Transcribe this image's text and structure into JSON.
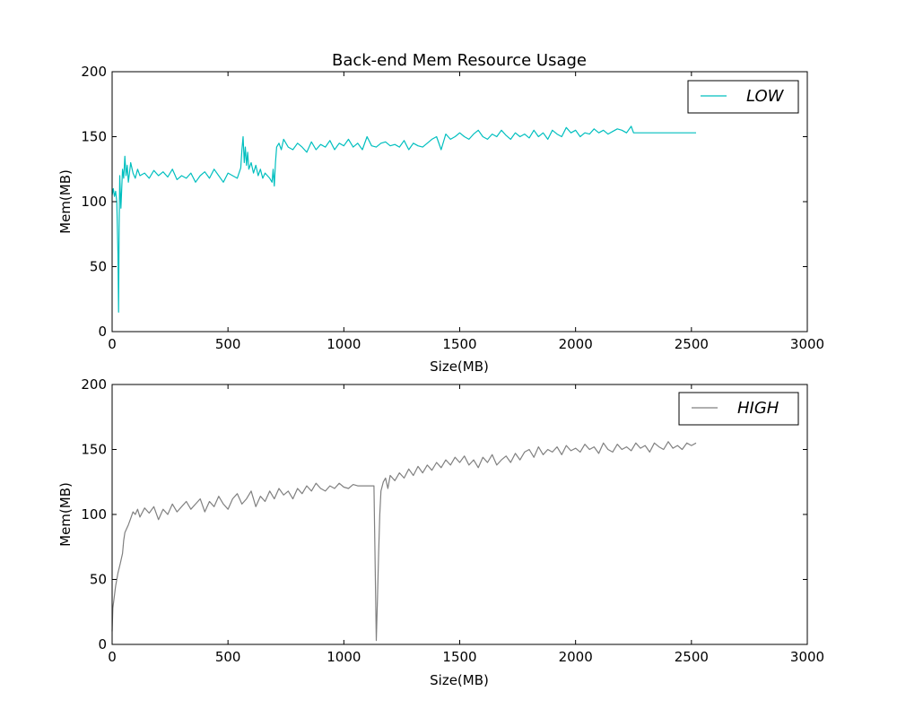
{
  "figure_title": "Back-end Mem Resource Usage",
  "chart_data": [
    {
      "type": "line",
      "title": "Back-end Mem Resource Usage",
      "xlabel": "Size(MB)",
      "ylabel": "Mem(MB)",
      "xlim": [
        0,
        3000
      ],
      "ylim": [
        0,
        200
      ],
      "xticks": [
        0,
        500,
        1000,
        1500,
        2000,
        2500,
        3000
      ],
      "yticks": [
        0,
        50,
        100,
        150,
        200
      ],
      "grid": false,
      "legend": {
        "placement": "top-right"
      },
      "series": [
        {
          "name": "LOW",
          "color": "#00bfbf",
          "x": [
            0,
            5,
            10,
            15,
            20,
            25,
            28,
            30,
            33,
            38,
            45,
            50,
            55,
            60,
            65,
            70,
            80,
            90,
            100,
            110,
            120,
            140,
            160,
            180,
            200,
            220,
            240,
            260,
            280,
            300,
            320,
            340,
            360,
            380,
            400,
            420,
            440,
            460,
            480,
            500,
            520,
            540,
            555,
            560,
            565,
            570,
            575,
            580,
            585,
            590,
            600,
            610,
            620,
            630,
            640,
            650,
            660,
            670,
            680,
            690,
            695,
            700,
            705,
            710,
            720,
            730,
            740,
            760,
            780,
            800,
            820,
            840,
            860,
            880,
            900,
            920,
            940,
            960,
            980,
            1000,
            1020,
            1040,
            1060,
            1080,
            1100,
            1120,
            1140,
            1160,
            1180,
            1200,
            1220,
            1240,
            1260,
            1280,
            1300,
            1320,
            1340,
            1360,
            1380,
            1400,
            1420,
            1440,
            1460,
            1480,
            1500,
            1520,
            1540,
            1560,
            1580,
            1600,
            1620,
            1640,
            1660,
            1680,
            1700,
            1720,
            1740,
            1760,
            1780,
            1800,
            1820,
            1840,
            1860,
            1880,
            1900,
            1920,
            1940,
            1960,
            1980,
            2000,
            2020,
            2040,
            2060,
            2080,
            2100,
            2120,
            2140,
            2160,
            2180,
            2200,
            2220,
            2240,
            2250,
            2300,
            2400,
            2520
          ],
          "values": [
            105,
            110,
            104,
            108,
            100,
            60,
            15,
            80,
            120,
            95,
            125,
            118,
            135,
            120,
            128,
            115,
            130,
            122,
            118,
            125,
            120,
            122,
            118,
            124,
            120,
            123,
            119,
            125,
            117,
            120,
            118,
            122,
            115,
            120,
            123,
            118,
            125,
            120,
            115,
            122,
            120,
            118,
            126,
            140,
            150,
            130,
            142,
            128,
            138,
            125,
            130,
            122,
            128,
            120,
            125,
            118,
            122,
            120,
            118,
            115,
            125,
            112,
            130,
            142,
            145,
            140,
            148,
            142,
            140,
            145,
            142,
            138,
            146,
            140,
            144,
            142,
            147,
            140,
            145,
            143,
            148,
            142,
            145,
            140,
            150,
            143,
            142,
            145,
            146,
            143,
            144,
            142,
            147,
            140,
            145,
            143,
            142,
            145,
            148,
            150,
            140,
            152,
            148,
            150,
            153,
            150,
            148,
            152,
            155,
            150,
            148,
            152,
            150,
            155,
            151,
            148,
            153,
            150,
            152,
            149,
            155,
            150,
            153,
            148,
            155,
            152,
            150,
            157,
            153,
            155,
            150,
            153,
            152,
            156,
            153,
            155,
            152,
            154,
            156,
            155,
            153,
            158,
            153,
            153,
            153,
            153
          ]
        }
      ]
    },
    {
      "type": "line",
      "title": "",
      "xlabel": "Size(MB)",
      "ylabel": "Mem(MB)",
      "xlim": [
        0,
        3000
      ],
      "ylim": [
        0,
        200
      ],
      "xticks": [
        0,
        500,
        1000,
        1500,
        2000,
        2500,
        3000
      ],
      "yticks": [
        0,
        50,
        100,
        150,
        200
      ],
      "grid": false,
      "legend": {
        "placement": "top-right"
      },
      "series": [
        {
          "name": "HIGH",
          "color": "#808080",
          "x": [
            0,
            3,
            8,
            15,
            25,
            35,
            45,
            50,
            55,
            60,
            70,
            80,
            90,
            100,
            110,
            120,
            140,
            160,
            180,
            200,
            220,
            240,
            260,
            280,
            300,
            320,
            340,
            360,
            380,
            400,
            420,
            440,
            460,
            480,
            500,
            520,
            540,
            560,
            580,
            600,
            620,
            640,
            660,
            680,
            700,
            720,
            740,
            760,
            780,
            800,
            820,
            840,
            860,
            880,
            900,
            920,
            940,
            960,
            980,
            1000,
            1020,
            1040,
            1060,
            1080,
            1100,
            1130,
            1140,
            1145,
            1150,
            1155,
            1160,
            1170,
            1180,
            1190,
            1200,
            1220,
            1240,
            1260,
            1280,
            1300,
            1320,
            1340,
            1360,
            1380,
            1400,
            1420,
            1440,
            1460,
            1480,
            1500,
            1520,
            1540,
            1560,
            1580,
            1600,
            1620,
            1640,
            1660,
            1680,
            1700,
            1720,
            1740,
            1760,
            1780,
            1800,
            1820,
            1840,
            1860,
            1880,
            1900,
            1920,
            1940,
            1960,
            1980,
            2000,
            2020,
            2040,
            2060,
            2080,
            2100,
            2120,
            2140,
            2160,
            2180,
            2200,
            2220,
            2240,
            2260,
            2280,
            2300,
            2320,
            2340,
            2360,
            2380,
            2400,
            2420,
            2440,
            2460,
            2480,
            2500,
            2520
          ],
          "values": [
            10,
            28,
            35,
            45,
            55,
            62,
            70,
            80,
            86,
            88,
            92,
            97,
            102,
            100,
            104,
            98,
            105,
            101,
            106,
            96,
            104,
            100,
            108,
            102,
            106,
            110,
            104,
            108,
            112,
            102,
            110,
            106,
            114,
            108,
            104,
            112,
            116,
            108,
            112,
            118,
            106,
            114,
            110,
            118,
            112,
            120,
            115,
            118,
            112,
            120,
            116,
            122,
            118,
            124,
            120,
            118,
            122,
            120,
            124,
            121,
            120,
            123,
            122,
            122,
            122,
            122,
            3,
            35,
            70,
            100,
            118,
            125,
            128,
            120,
            130,
            126,
            132,
            128,
            135,
            130,
            137,
            132,
            138,
            134,
            140,
            136,
            142,
            138,
            144,
            140,
            145,
            138,
            142,
            136,
            144,
            140,
            146,
            138,
            142,
            145,
            140,
            147,
            142,
            148,
            150,
            144,
            152,
            146,
            150,
            148,
            152,
            146,
            153,
            149,
            151,
            148,
            154,
            150,
            152,
            147,
            155,
            150,
            148,
            154,
            150,
            152,
            149,
            155,
            151,
            153,
            148,
            155,
            152,
            150,
            156,
            151,
            153,
            150,
            155,
            153,
            155
          ]
        }
      ]
    }
  ]
}
